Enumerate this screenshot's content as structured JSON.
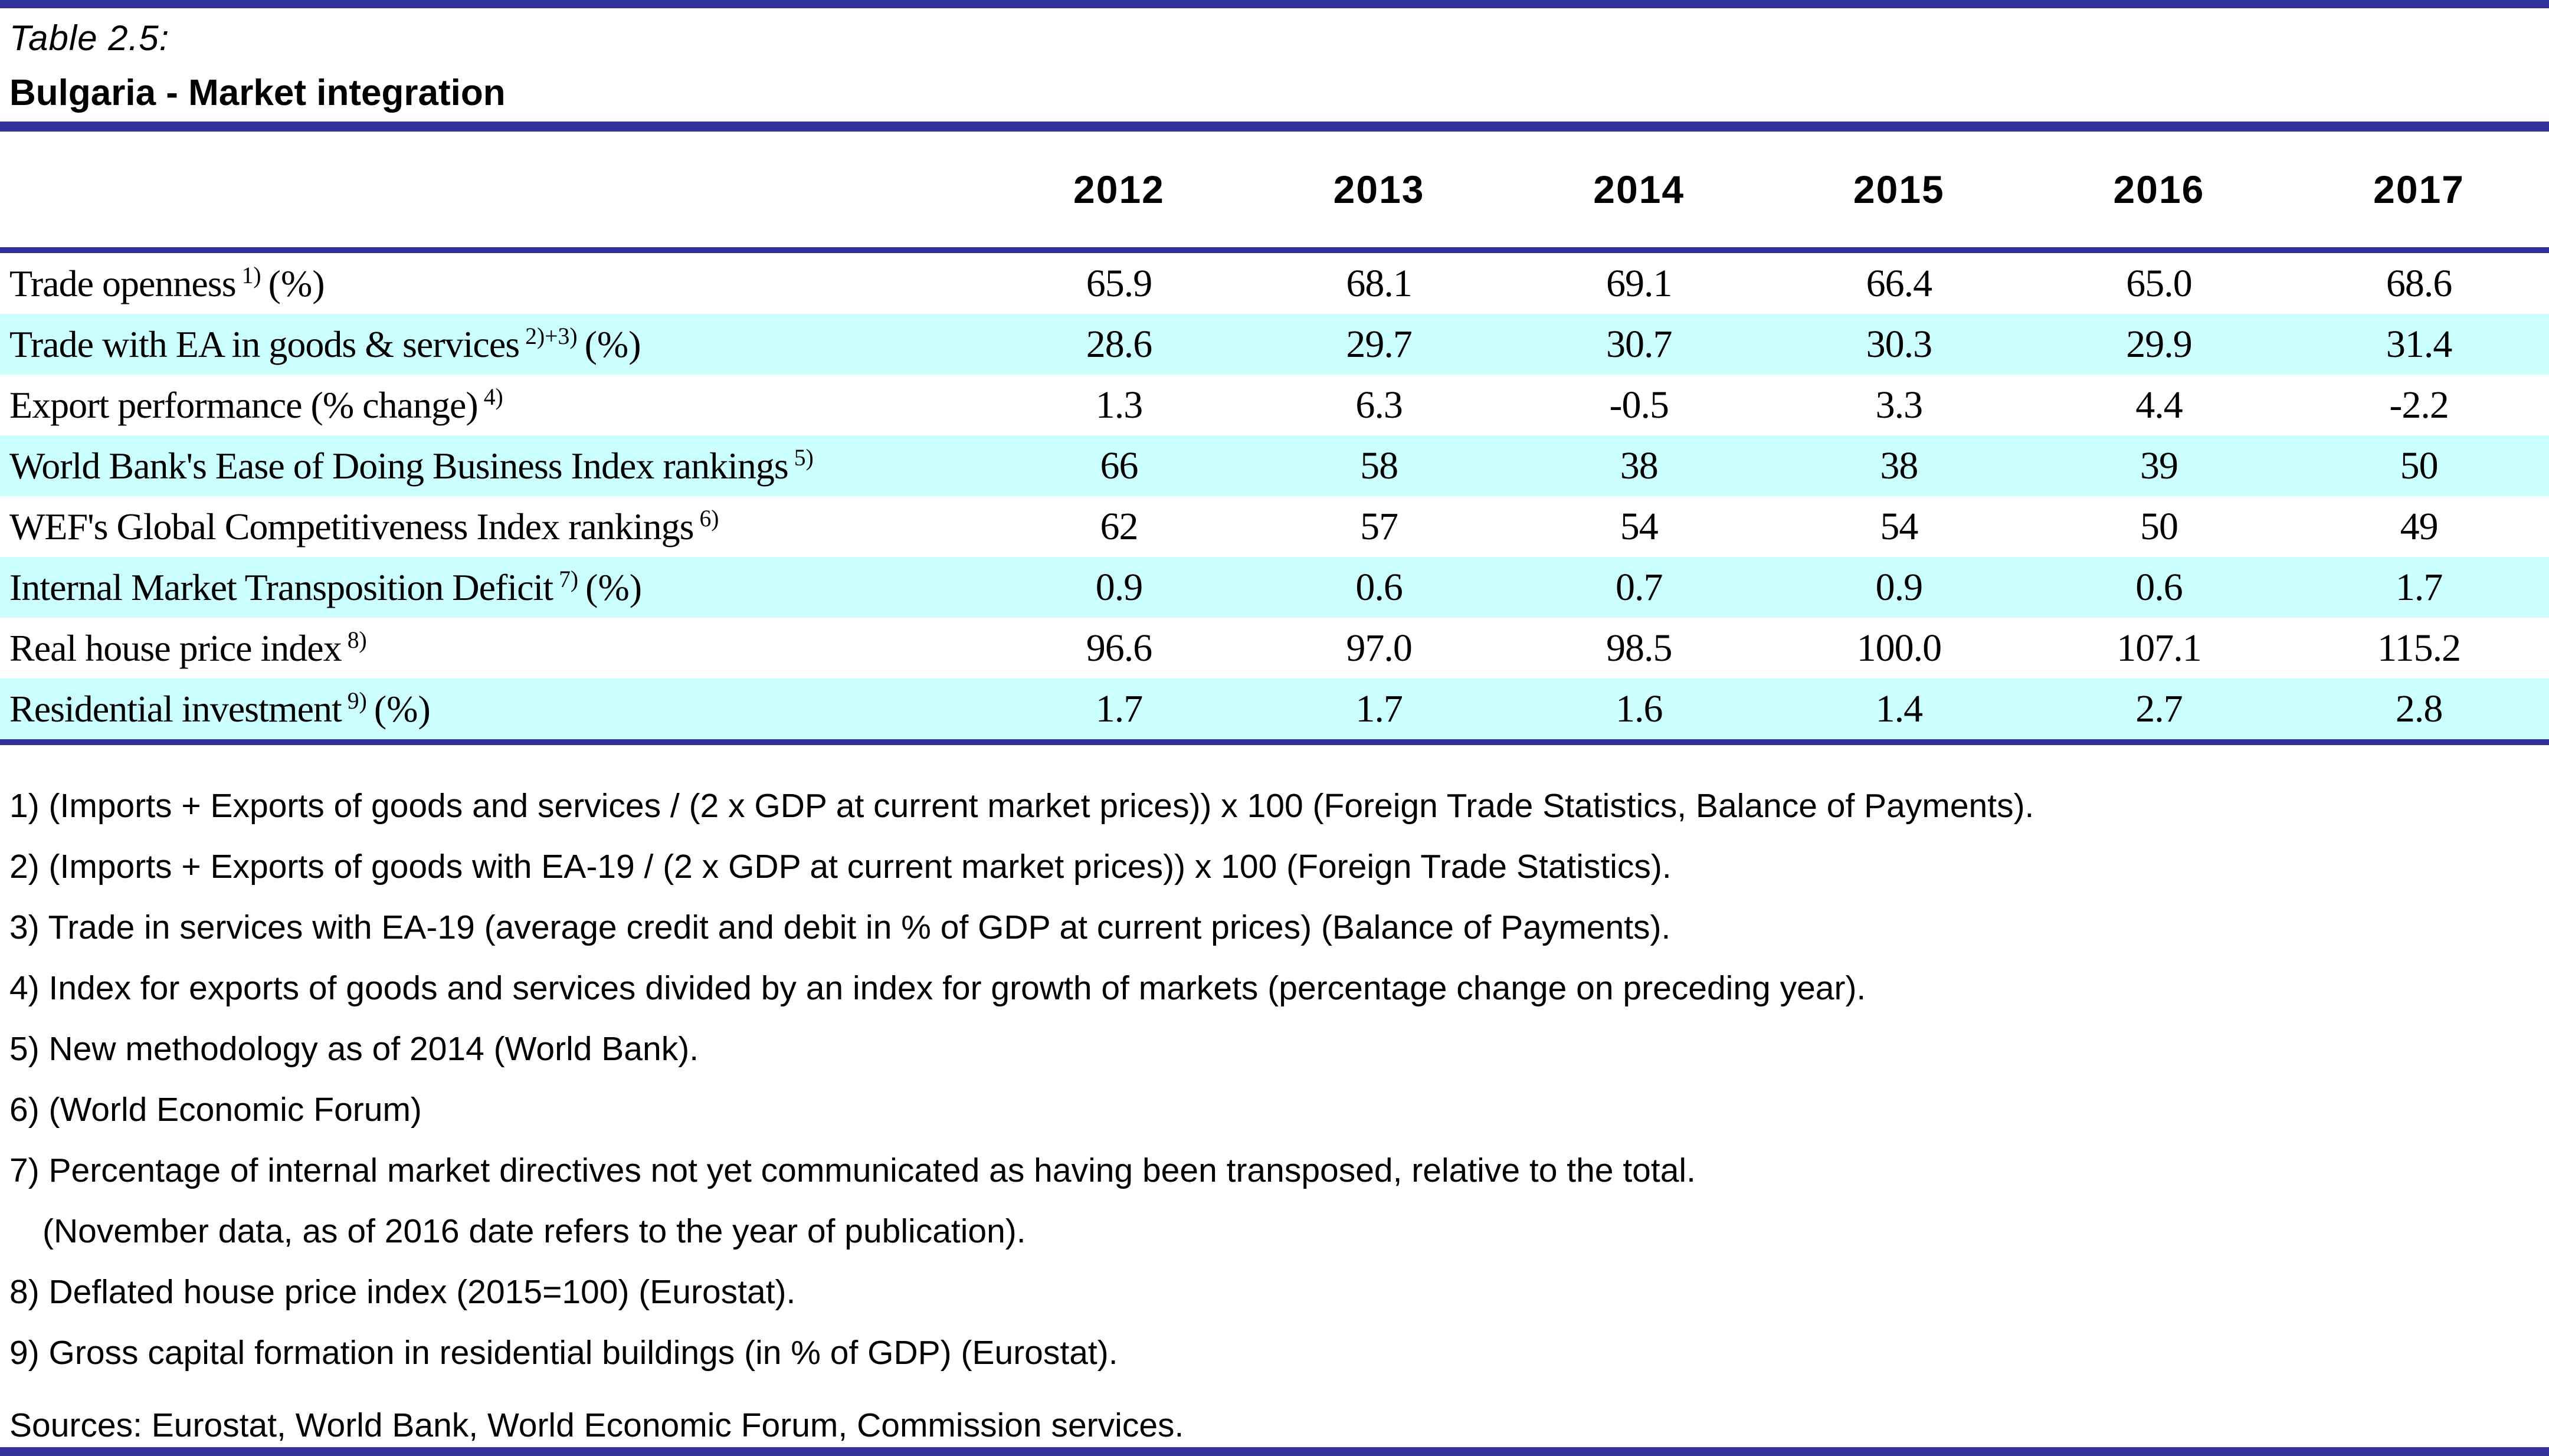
{
  "header": {
    "table_label": "Table 2.5:",
    "table_title": "Bulgaria - Market integration"
  },
  "columns": [
    "2012",
    "2013",
    "2014",
    "2015",
    "2016",
    "2017"
  ],
  "rows": [
    {
      "label": "Trade openness",
      "sup": "1)",
      "suffix": "(%)",
      "values": [
        "65.9",
        "68.1",
        "69.1",
        "66.4",
        "65.0",
        "68.6"
      ]
    },
    {
      "label": "Trade with EA in goods & services",
      "sup": "2)+3)",
      "suffix": "(%)",
      "values": [
        "28.6",
        "29.7",
        "30.7",
        "30.3",
        "29.9",
        "31.4"
      ]
    },
    {
      "label": "Export performance (% change)",
      "sup": "4)",
      "suffix": "",
      "values": [
        "1.3",
        "6.3",
        "-0.5",
        "3.3",
        "4.4",
        "-2.2"
      ]
    },
    {
      "label": "World Bank's Ease of Doing Business Index rankings",
      "sup": "5)",
      "suffix": "",
      "values": [
        "66",
        "58",
        "38",
        "38",
        "39",
        "50"
      ]
    },
    {
      "label": "WEF's Global Competitiveness Index rankings",
      "sup": "6)",
      "suffix": "",
      "values": [
        "62",
        "57",
        "54",
        "54",
        "50",
        "49"
      ]
    },
    {
      "label": "Internal Market Transposition Deficit",
      "sup": "7)",
      "suffix": "(%)",
      "values": [
        "0.9",
        "0.6",
        "0.7",
        "0.9",
        "0.6",
        "1.7"
      ]
    },
    {
      "label": "Real house price index",
      "sup": "8)",
      "suffix": "",
      "values": [
        "96.6",
        "97.0",
        "98.5",
        "100.0",
        "107.1",
        "115.2"
      ]
    },
    {
      "label": "Residential investment",
      "sup": "9)",
      "suffix": "(%)",
      "values": [
        "1.7",
        "1.7",
        "1.6",
        "1.4",
        "2.7",
        "2.8"
      ]
    }
  ],
  "footnotes": [
    "1) (Imports + Exports of goods and services / (2 x GDP at current market prices)) x 100 (Foreign Trade Statistics, Balance of Payments).",
    "2) (Imports + Exports of goods with EA-19 / (2 x GDP at current market prices)) x 100 (Foreign Trade Statistics).",
    "3) Trade in services with EA-19 (average credit and debit in % of GDP at current prices) (Balance of Payments).",
    "4) Index for exports of goods and services divided by an index for growth of markets (percentage change on preceding year).",
    "5) New methodology as of 2014 (World Bank).",
    "6) (World Economic Forum)",
    "7) Percentage of internal market directives not yet communicated as having been transposed, relative to the total.",
    "(November data, as of 2016 date refers to the year of publication).",
    "8) Deflated house price index (2015=100) (Eurostat).",
    "9) Gross capital formation in residential buildings (in % of GDP) (Eurostat)."
  ],
  "sources": "Sources: Eurostat, World Bank, World Economic Forum, Commission services.",
  "colors": {
    "accent_bar": "#32319B",
    "band_cyan": "#CCFFFF"
  }
}
